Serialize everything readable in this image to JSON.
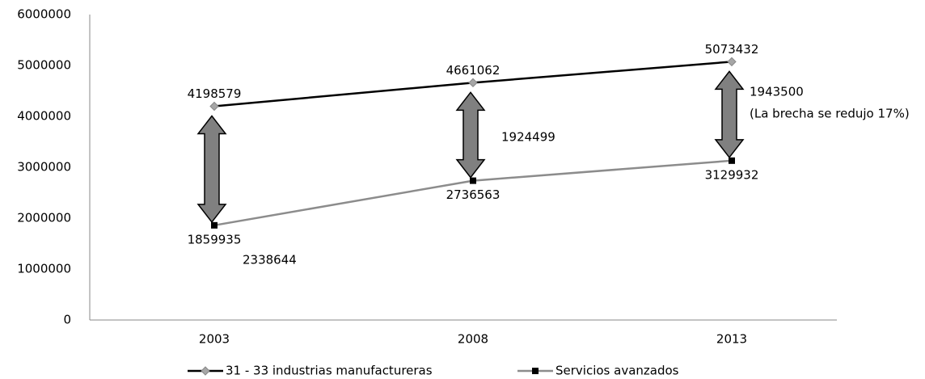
{
  "chart_data": {
    "type": "line",
    "categories": [
      "2003",
      "2008",
      "2013"
    ],
    "series": [
      {
        "name": "31 - 33 industrias manufactureras",
        "color": "#000000",
        "marker": "diamond",
        "marker_color": "#a6a6a6",
        "values": [
          4198579,
          4661062,
          5073432
        ]
      },
      {
        "name": "Servicios avanzados",
        "color": "#8c8c8c",
        "marker": "square",
        "marker_color": "#000000",
        "values": [
          1859935,
          2736563,
          3129932
        ]
      }
    ],
    "gaps": {
      "color": "#808080",
      "values": [
        2338644,
        1924499,
        1943500
      ]
    },
    "annotation": "(La brecha se redujo 17%)",
    "ylim": [
      0,
      6000000
    ],
    "yticks": [
      0,
      1000000,
      2000000,
      3000000,
      4000000,
      5000000,
      6000000
    ],
    "grid": false,
    "legend": "bottom"
  }
}
